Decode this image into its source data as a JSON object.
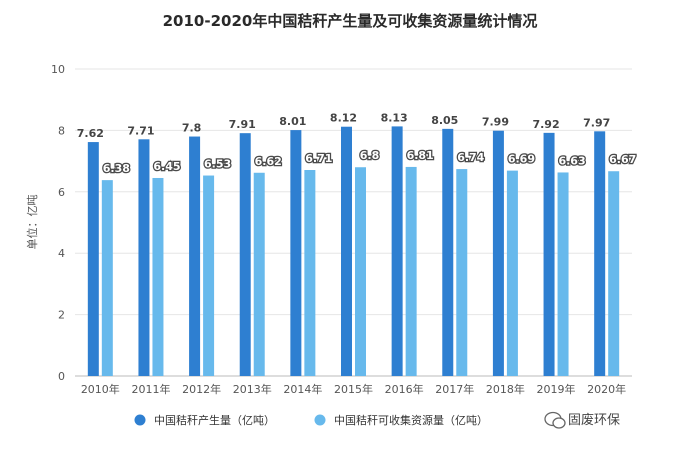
{
  "chart_data": {
    "type": "bar",
    "title": "2010-2020年中国秸秆产生量及可收集资源量统计情况",
    "ylabel": "单位：亿吨",
    "xlabel": "",
    "ylim": [
      0,
      10
    ],
    "yticks": [
      0,
      2,
      4,
      6,
      8,
      10
    ],
    "categories": [
      "2010年",
      "2011年",
      "2012年",
      "2013年",
      "2014年",
      "2015年",
      "2016年",
      "2017年",
      "2018年",
      "2019年",
      "2020年"
    ],
    "series": [
      {
        "name": "中国秸秆产生量（亿吨）",
        "color": "#2e7fd1",
        "values": [
          7.62,
          7.71,
          7.8,
          7.91,
          8.01,
          8.12,
          8.13,
          8.05,
          7.99,
          7.92,
          7.97
        ]
      },
      {
        "name": "中国秸秆可收集资源量（亿吨）",
        "color": "#67b9ec",
        "values": [
          6.38,
          6.45,
          6.53,
          6.62,
          6.71,
          6.8,
          6.81,
          6.74,
          6.69,
          6.63,
          6.67
        ]
      }
    ],
    "grid": true,
    "legend_position": "bottom"
  },
  "watermark": {
    "text": "固废环保",
    "icon": "wechat-icon"
  }
}
